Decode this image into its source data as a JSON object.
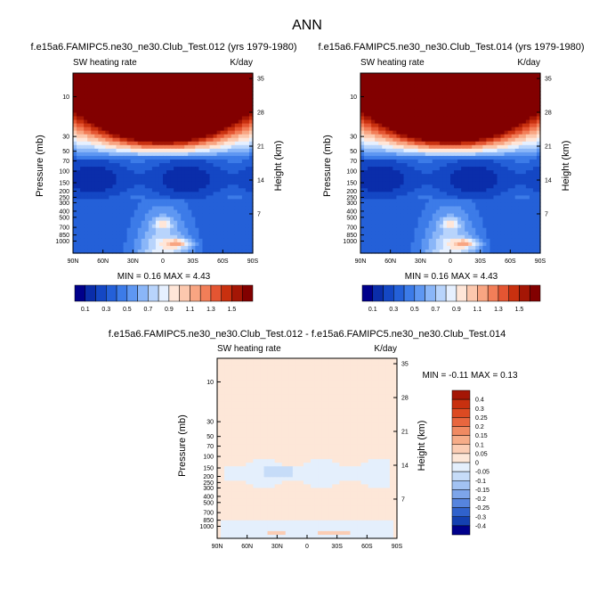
{
  "figure_title": "ANN",
  "chart_data": [
    {
      "type": "heatmap",
      "title": "f.e15a6.FAMIPC5.ne30_ne30.Club_Test.012 (yrs 1979-1980)",
      "left_label": "SW heating rate",
      "right_label": "K/day",
      "xlabel": "",
      "ylabel": "Pressure (mb)",
      "ylabel_right": "Height (km)",
      "x_ticks": [
        "90N",
        "60N",
        "30N",
        "0",
        "30S",
        "60S",
        "90S"
      ],
      "y_ticks": [
        "10",
        "30",
        "50",
        "70",
        "100",
        "150",
        "200",
        "250",
        "300",
        "400",
        "500",
        "700",
        "850",
        "1000"
      ],
      "y_right_ticks": [
        "35",
        "28",
        "21",
        "14",
        "7"
      ],
      "stats": {
        "min": "0.16",
        "max": "4.43"
      },
      "stats_text": "MIN =  0.16  MAX =   4.43",
      "levels": [
        "0.1",
        "0.3",
        "0.5",
        "0.7",
        "0.9",
        "1.1",
        "1.3",
        "1.5"
      ],
      "colors": [
        "#00008B",
        "#0A2DAA",
        "#1447C4",
        "#2460D8",
        "#3C7BE8",
        "#5E97F2",
        "#8AB6F8",
        "#B8D4FC",
        "#E6F0FF",
        "#FFE6D8",
        "#FCC8AE",
        "#F8A582",
        "#F27E58",
        "#E45532",
        "#C8300F",
        "#A41605",
        "#820000"
      ]
    },
    {
      "type": "heatmap",
      "title": "f.e15a6.FAMIPC5.ne30_ne30.Club_Test.014 (yrs 1979-1980)",
      "left_label": "SW heating rate",
      "right_label": "K/day",
      "xlabel": "",
      "ylabel": "Pressure (mb)",
      "ylabel_right": "Height (km)",
      "x_ticks": [
        "90N",
        "60N",
        "30N",
        "0",
        "30S",
        "60S",
        "90S"
      ],
      "y_ticks": [
        "10",
        "30",
        "50",
        "70",
        "100",
        "150",
        "200",
        "250",
        "300",
        "400",
        "500",
        "700",
        "850",
        "1000"
      ],
      "y_right_ticks": [
        "35",
        "28",
        "21",
        "14",
        "7"
      ],
      "stats": {
        "min": "0.16",
        "max": "4.43"
      },
      "stats_text": "MIN =  0.16  MAX =   4.43",
      "levels": [
        "0.1",
        "0.3",
        "0.5",
        "0.7",
        "0.9",
        "1.1",
        "1.3",
        "1.5"
      ],
      "colors": [
        "#00008B",
        "#0A2DAA",
        "#1447C4",
        "#2460D8",
        "#3C7BE8",
        "#5E97F2",
        "#8AB6F8",
        "#B8D4FC",
        "#E6F0FF",
        "#FFE6D8",
        "#FCC8AE",
        "#F8A582",
        "#F27E58",
        "#E45532",
        "#C8300F",
        "#A41605",
        "#820000"
      ]
    },
    {
      "type": "heatmap",
      "title": "f.e15a6.FAMIPC5.ne30_ne30.Club_Test.012 - f.e15a6.FAMIPC5.ne30_ne30.Club_Test.014",
      "left_label": "SW heating rate",
      "right_label": "K/day",
      "xlabel": "",
      "ylabel": "Pressure (mb)",
      "ylabel_right": "Height (km)",
      "x_ticks": [
        "90N",
        "60N",
        "30N",
        "0",
        "30S",
        "60S",
        "90S"
      ],
      "y_ticks": [
        "10",
        "30",
        "50",
        "70",
        "100",
        "150",
        "200",
        "250",
        "300",
        "400",
        "500",
        "700",
        "850",
        "1000"
      ],
      "y_right_ticks": [
        "35",
        "28",
        "21",
        "14",
        "7"
      ],
      "stats": {
        "min": "-0.11",
        "max": "0.13"
      },
      "stats_text": "MIN = -0.11  MAX =  0.13",
      "levels": [
        "0.4",
        "0.3",
        "0.25",
        "0.2",
        "0.15",
        "0.1",
        "0.05",
        "0",
        "-0.05",
        "-0.1",
        "-0.15",
        "-0.2",
        "-0.25",
        "-0.3",
        "-0.4"
      ],
      "colors": [
        "#A41605",
        "#C8300F",
        "#DC4A22",
        "#E8663E",
        "#F08A62",
        "#F6AC88",
        "#FBCDB4",
        "#FDE7D8",
        "#E4EFFC",
        "#C6DCF8",
        "#A2C2F2",
        "#7DA5EA",
        "#5684DE",
        "#3062CC",
        "#1440B0",
        "#00008B"
      ]
    }
  ]
}
